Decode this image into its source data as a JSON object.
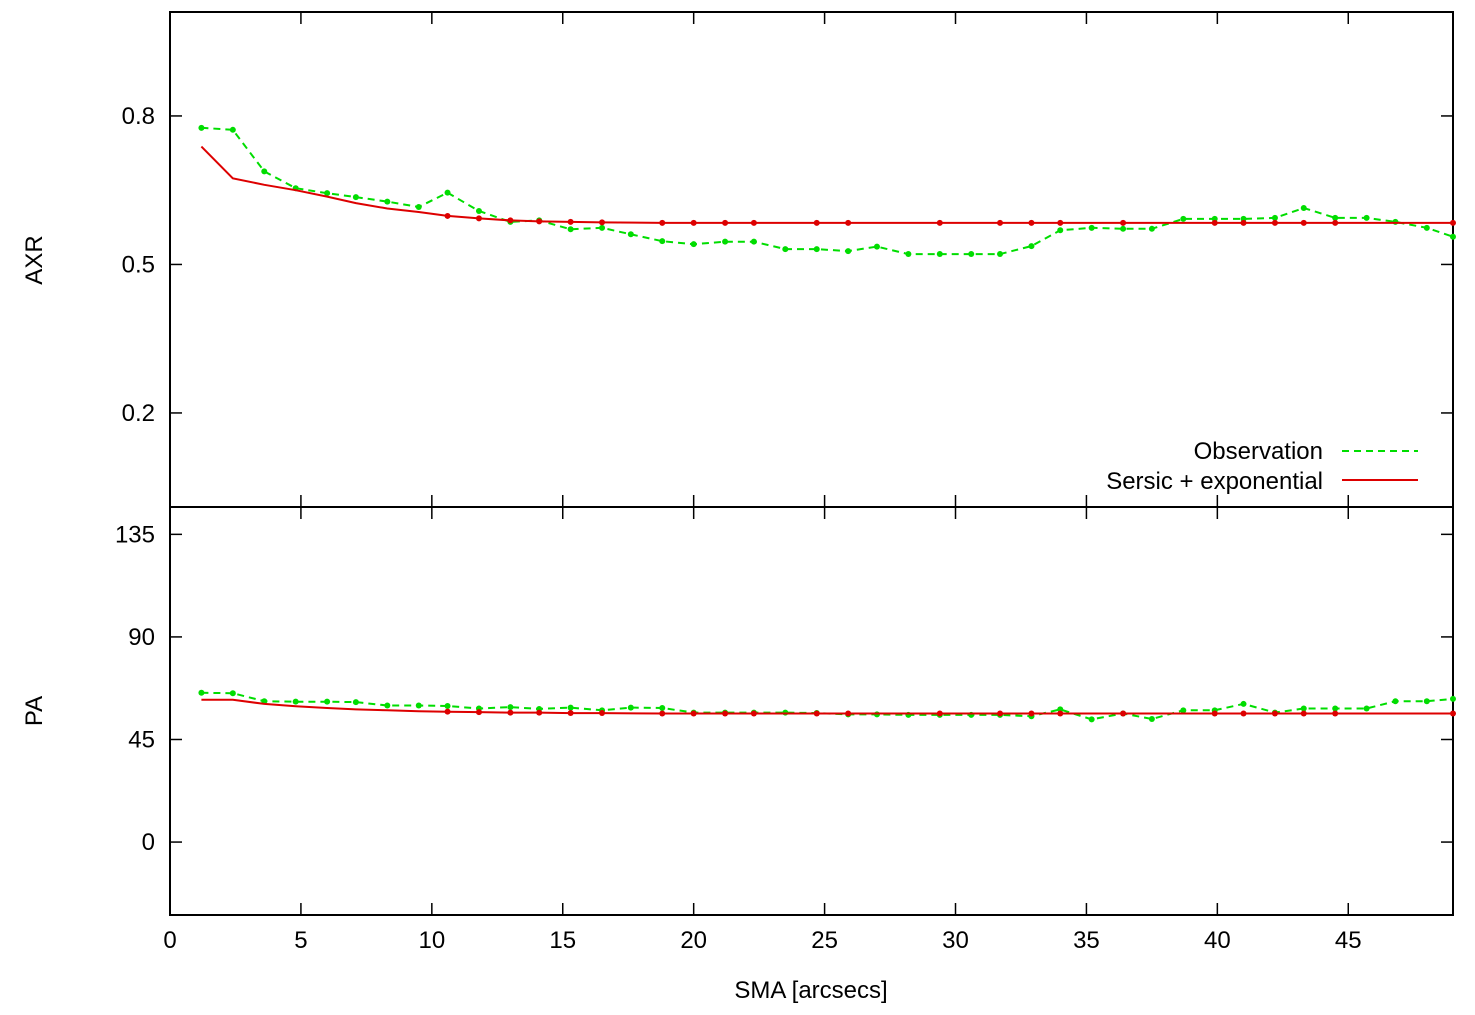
{
  "chart_data": [
    {
      "type": "line",
      "ylabel": "AXR",
      "ylim": [
        0.01,
        1.01
      ],
      "yticks": [
        0.2,
        0.5,
        0.8
      ],
      "xlim": [
        0,
        49
      ],
      "xticks": [
        0,
        5,
        10,
        15,
        20,
        25,
        30,
        35,
        40,
        45
      ],
      "grid": false,
      "legend_position": "bottom-right",
      "series": [
        {
          "name": "Observation",
          "color": "#00dd00",
          "style": "dashed-points",
          "x": [
            1.2,
            2.4,
            3.6,
            4.8,
            6.0,
            7.1,
            8.3,
            9.5,
            10.6,
            11.8,
            13.0,
            14.1,
            15.3,
            16.5,
            17.6,
            18.8,
            20.0,
            21.2,
            22.3,
            23.5,
            24.7,
            25.9,
            27.0,
            28.2,
            29.4,
            30.6,
            31.7,
            32.9,
            34.0,
            35.2,
            36.4,
            37.5,
            38.7,
            39.9,
            41.0,
            42.2,
            43.3,
            44.5,
            45.7,
            46.8,
            48.0,
            49.0
          ],
          "y": [
            0.776,
            0.772,
            0.688,
            0.654,
            0.644,
            0.636,
            0.627,
            0.616,
            0.645,
            0.608,
            0.586,
            0.589,
            0.571,
            0.574,
            0.561,
            0.547,
            0.541,
            0.546,
            0.546,
            0.531,
            0.531,
            0.527,
            0.536,
            0.521,
            0.521,
            0.521,
            0.521,
            0.537,
            0.569,
            0.574,
            0.572,
            0.572,
            0.592,
            0.592,
            0.592,
            0.594,
            0.614,
            0.594,
            0.594,
            0.586,
            0.574,
            0.556
          ]
        },
        {
          "name": "Sersic + exponential",
          "color": "#dd0000",
          "style": "solid",
          "x": [
            1.2,
            2.4,
            3.6,
            4.8,
            6.0,
            7.1,
            8.3,
            9.5,
            10.6,
            11.8,
            13.0,
            14.1,
            15.3,
            16.5,
            18.8,
            20.0,
            21.2,
            22.3,
            24.7,
            25.9,
            29.4,
            31.7,
            32.9,
            34.0,
            36.4,
            39.9,
            41.0,
            42.2,
            43.3,
            44.5,
            49.0
          ],
          "y": [
            0.738,
            0.674,
            0.661,
            0.65,
            0.637,
            0.624,
            0.613,
            0.606,
            0.598,
            0.593,
            0.589,
            0.587,
            0.586,
            0.585,
            0.584,
            0.584,
            0.584,
            0.584,
            0.584,
            0.584,
            0.584,
            0.584,
            0.584,
            0.584,
            0.584,
            0.584,
            0.584,
            0.584,
            0.584,
            0.584,
            0.584
          ]
        }
      ]
    },
    {
      "type": "line",
      "ylabel": "PA",
      "xlabel": "SMA [arcsecs]",
      "ylim": [
        -32,
        147
      ],
      "yticks": [
        0,
        45,
        90,
        135
      ],
      "xlim": [
        0,
        49
      ],
      "xticks": [
        0,
        5,
        10,
        15,
        20,
        25,
        30,
        35,
        40,
        45
      ],
      "grid": false,
      "series": [
        {
          "name": "Observation",
          "color": "#00dd00",
          "style": "dashed-points",
          "x": [
            1.2,
            2.4,
            3.6,
            4.8,
            6.0,
            7.1,
            8.3,
            9.5,
            10.6,
            11.8,
            13.0,
            14.1,
            15.3,
            16.5,
            17.6,
            18.8,
            20.0,
            21.2,
            22.3,
            23.5,
            24.7,
            25.9,
            27.0,
            28.2,
            29.4,
            30.6,
            31.7,
            32.9,
            34.0,
            35.2,
            36.4,
            37.5,
            38.7,
            39.9,
            41.0,
            42.2,
            43.3,
            44.5,
            45.7,
            46.8,
            48.0,
            49.0
          ],
          "y": [
            65.5,
            65.3,
            61.8,
            61.6,
            61.6,
            61.4,
            59.9,
            59.9,
            59.7,
            58.6,
            59.2,
            58.4,
            59.0,
            57.8,
            59.0,
            58.8,
            56.8,
            56.8,
            56.8,
            56.8,
            56.6,
            56.0,
            56.0,
            55.8,
            55.8,
            55.8,
            55.8,
            55.2,
            58.2,
            53.8,
            56.4,
            54.0,
            57.8,
            57.8,
            60.6,
            56.8,
            58.6,
            58.6,
            58.6,
            61.8,
            61.8,
            62.8
          ]
        },
        {
          "name": "Sersic + exponential",
          "color": "#dd0000",
          "style": "solid",
          "x": [
            1.2,
            2.4,
            3.6,
            4.8,
            6.0,
            7.1,
            8.3,
            9.5,
            10.6,
            11.8,
            13.0,
            14.1,
            15.3,
            16.5,
            18.8,
            20.0,
            21.2,
            22.3,
            24.7,
            25.9,
            29.4,
            31.7,
            32.9,
            34.0,
            36.4,
            39.9,
            41.0,
            42.2,
            43.3,
            44.5,
            49.0
          ],
          "y": [
            62.4,
            62.4,
            60.6,
            59.6,
            58.8,
            58.2,
            57.8,
            57.4,
            57.2,
            57.0,
            56.8,
            56.8,
            56.6,
            56.6,
            56.4,
            56.4,
            56.4,
            56.4,
            56.4,
            56.4,
            56.4,
            56.4,
            56.4,
            56.4,
            56.4,
            56.4,
            56.4,
            56.4,
            56.4,
            56.4,
            56.4
          ]
        }
      ]
    }
  ]
}
